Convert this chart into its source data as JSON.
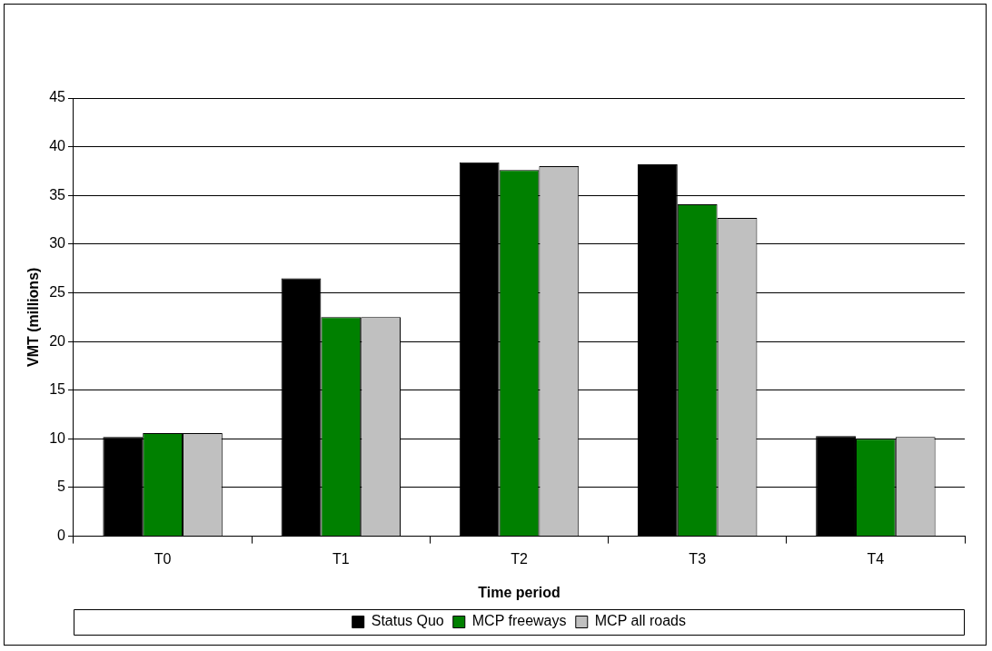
{
  "chart_data": {
    "type": "bar",
    "xlabel": "Time period",
    "ylabel": "VMT (millions)",
    "categories": [
      "T0",
      "T1",
      "T2",
      "T3",
      "T4"
    ],
    "series": [
      {
        "name": "Status Quo",
        "color": "#000000",
        "values": [
          10.2,
          26.5,
          38.4,
          38.2,
          10.3
        ]
      },
      {
        "name": "MCP freeways",
        "color": "#008000",
        "values": [
          10.6,
          22.5,
          37.6,
          34.1,
          10.0
        ]
      },
      {
        "name": "MCP all roads",
        "color": "#c0c0c0",
        "values": [
          10.6,
          22.5,
          38.0,
          32.7,
          10.2
        ]
      }
    ],
    "ylim": [
      0,
      45
    ],
    "yticks": [
      0,
      5,
      10,
      15,
      20,
      25,
      30,
      35,
      40,
      45
    ],
    "grid": "y",
    "legend": "bottom"
  }
}
